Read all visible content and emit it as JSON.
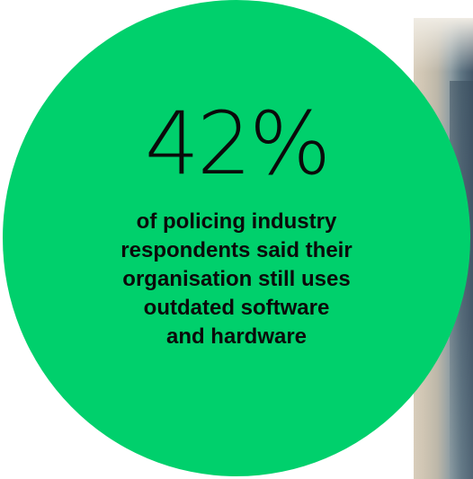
{
  "stat": {
    "value": "42%",
    "caption_lines": [
      "of policing industry",
      "respondents said their",
      "organisation still uses",
      "outdated software",
      "and hardware"
    ]
  },
  "colors": {
    "circle": "#00d06c",
    "text": "#0a0a0a",
    "background": "#ffffff"
  }
}
